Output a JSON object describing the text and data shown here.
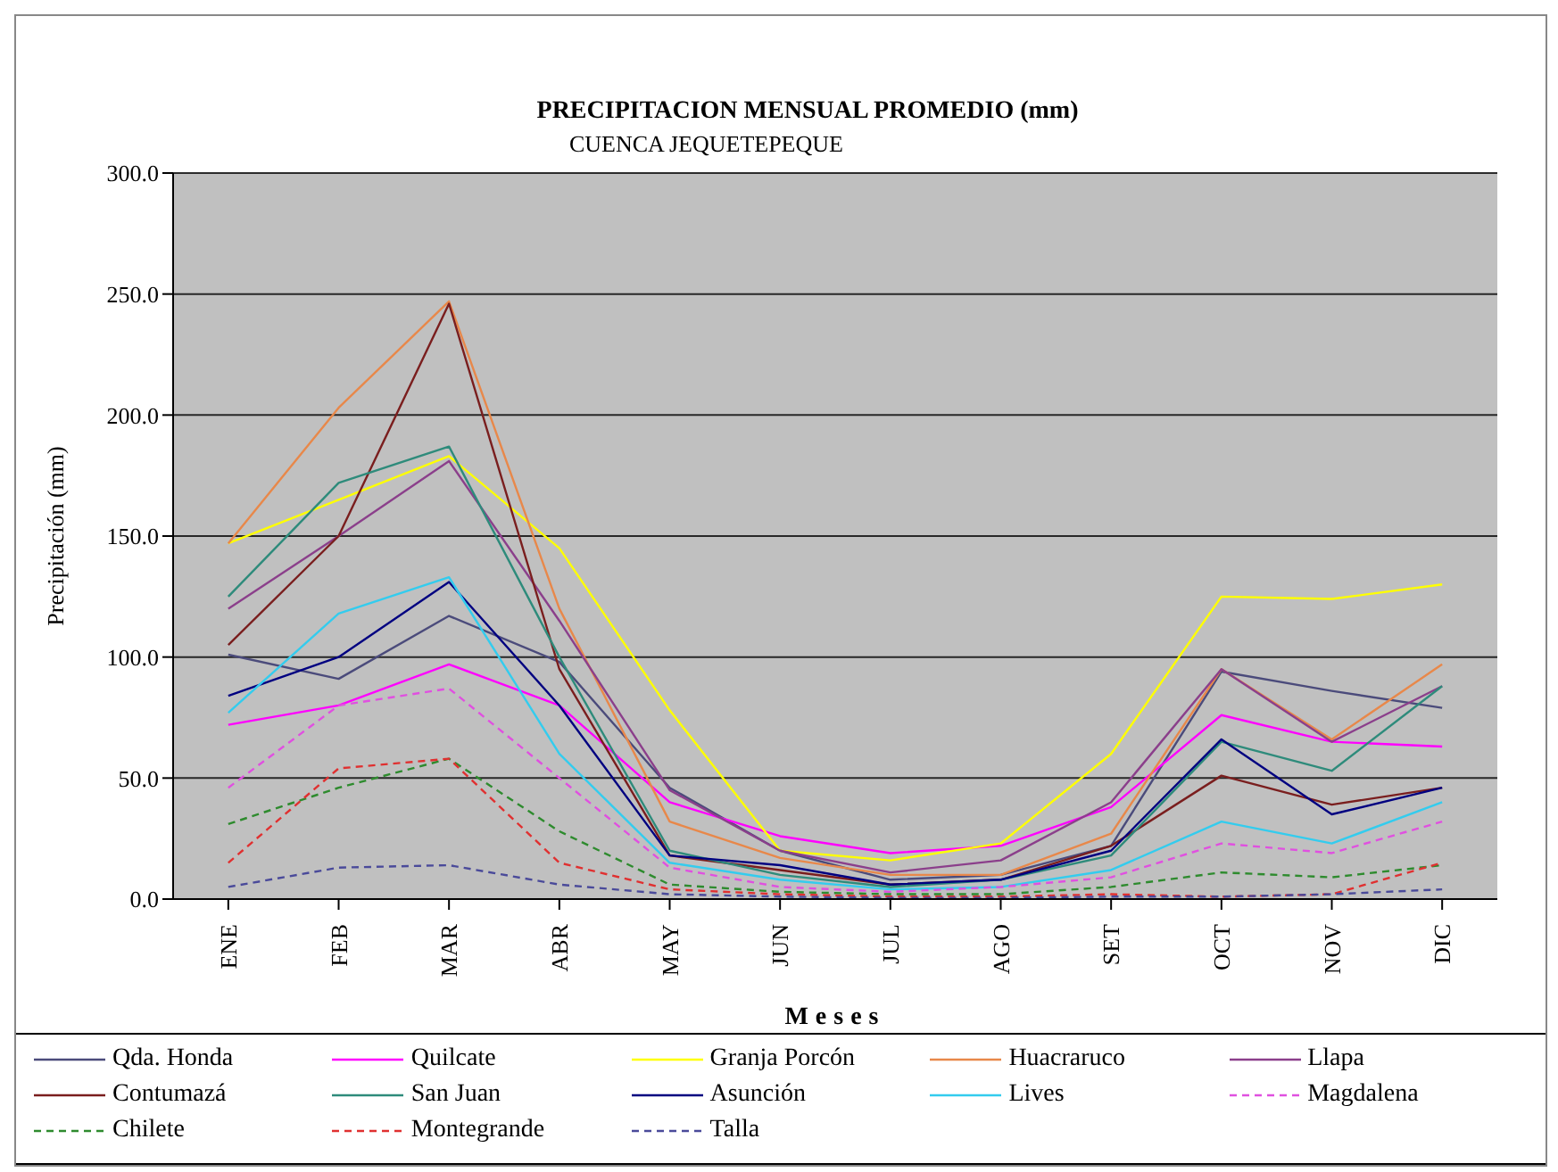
{
  "chart_data": {
    "type": "line",
    "title": "PRECIPITACION MENSUAL PROMEDIO (mm)",
    "subtitle": "CUENCA JEQUETEPEQUE",
    "xlabel": "Meses",
    "ylabel": "Precipitación (mm)",
    "categories": [
      "ENE",
      "FEB",
      "MAR",
      "ABR",
      "MAY",
      "JUN",
      "JUL",
      "AGO",
      "SET",
      "OCT",
      "NOV",
      "DIC"
    ],
    "ylim": [
      0,
      300
    ],
    "yticks": [
      {
        "value": 0,
        "label": "0.0"
      },
      {
        "value": 50,
        "label": "50.0"
      },
      {
        "value": 100,
        "label": "100.0"
      },
      {
        "value": 150,
        "label": "150.0"
      },
      {
        "value": 200,
        "label": "200.0"
      },
      {
        "value": 250,
        "label": "250.0"
      },
      {
        "value": 300,
        "label": "300.0"
      }
    ],
    "grid": "y",
    "legend": "bottom",
    "marker": "none",
    "series": [
      {
        "name": "Qda. Honda",
        "color": "#4b4b7b",
        "line_style": "solid",
        "values": [
          101,
          91,
          117,
          98,
          46,
          20,
          8,
          10,
          22,
          94,
          86,
          79
        ]
      },
      {
        "name": "Quilcate",
        "color": "#ff00ff",
        "line_style": "solid",
        "values": [
          72,
          80,
          97,
          80,
          40,
          26,
          19,
          22,
          38,
          76,
          65,
          63
        ]
      },
      {
        "name": "Granja Porcón",
        "color": "#ffff00",
        "line_style": "solid",
        "values": [
          147,
          165,
          183,
          145,
          78,
          20,
          16,
          23,
          60,
          125,
          124,
          130
        ]
      },
      {
        "name": "Huacraruco",
        "color": "#e8884a",
        "line_style": "solid",
        "values": [
          147,
          203,
          247,
          120,
          32,
          17,
          10,
          10,
          27,
          95,
          66,
          97
        ]
      },
      {
        "name": "Llapa",
        "color": "#8b3f8b",
        "line_style": "solid",
        "values": [
          120,
          150,
          181,
          115,
          45,
          20,
          11,
          16,
          40,
          95,
          65,
          88
        ]
      },
      {
        "name": "Contumazá",
        "color": "#7a1e1e",
        "line_style": "solid",
        "values": [
          105,
          150,
          246,
          95,
          18,
          12,
          6,
          8,
          22,
          51,
          39,
          46
        ]
      },
      {
        "name": "San Juan",
        "color": "#2e8b7b",
        "line_style": "solid",
        "values": [
          125,
          172,
          187,
          100,
          20,
          10,
          5,
          8,
          18,
          65,
          53,
          88
        ]
      },
      {
        "name": "Asunción",
        "color": "#000080",
        "line_style": "solid",
        "values": [
          84,
          100,
          131,
          80,
          18,
          14,
          6,
          8,
          20,
          66,
          35,
          46
        ]
      },
      {
        "name": "Lives",
        "color": "#33ccee",
        "line_style": "solid",
        "values": [
          77,
          118,
          133,
          60,
          15,
          8,
          4,
          5,
          12,
          32,
          23,
          40
        ]
      },
      {
        "name": "Magdalena",
        "color": "#e050e0",
        "line_style": "dashed",
        "values": [
          46,
          80,
          87,
          50,
          13,
          5,
          3,
          5,
          9,
          23,
          19,
          32
        ]
      },
      {
        "name": "Chilete",
        "color": "#2e8b2e",
        "line_style": "dashed",
        "values": [
          31,
          46,
          58,
          28,
          6,
          3,
          2,
          2,
          5,
          11,
          9,
          14
        ]
      },
      {
        "name": "Montegrande",
        "color": "#e03030",
        "line_style": "dashed",
        "values": [
          15,
          54,
          58,
          15,
          4,
          2,
          1,
          1,
          2,
          1,
          2,
          15
        ]
      },
      {
        "name": "Talla",
        "color": "#4a4a9a",
        "line_style": "dashed",
        "values": [
          5,
          13,
          14,
          6,
          2,
          1,
          0.5,
          0.5,
          1,
          1,
          2,
          4
        ]
      }
    ]
  }
}
